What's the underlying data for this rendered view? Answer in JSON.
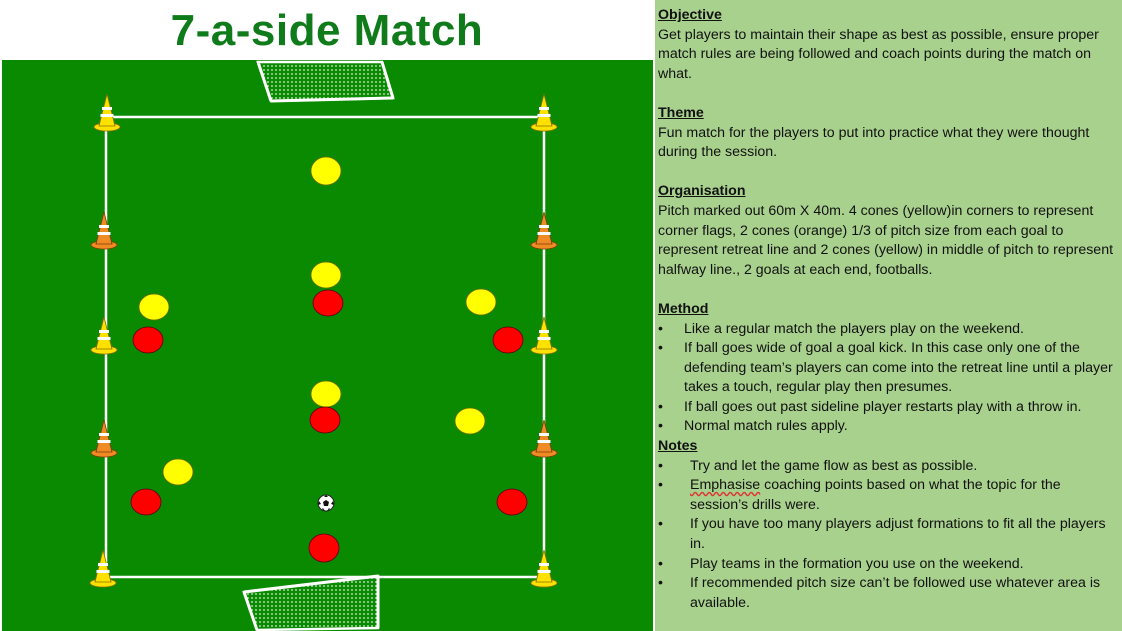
{
  "title": "7-a-side Match",
  "panel": {
    "objective": {
      "heading": "Objective",
      "text": "Get players to maintain their shape as best as possible, ensure proper match rules are being followed and coach points during the match on what."
    },
    "theme": {
      "heading": "Theme",
      "text": "Fun match for the players to put into practice what they were thought during the session."
    },
    "organisation": {
      "heading": "Organisation",
      "text": "Pitch marked out 60m X 40m. 4 cones (yellow)in corners to represent corner flags, 2 cones (orange) 1/3 of pitch size from each goal to represent retreat line and 2 cones (yellow) in middle of pitch to represent halfway line., 2 goals at each end, footballs."
    },
    "method": {
      "heading": "Method",
      "bullet": "•",
      "items": [
        "Like a regular match the players play on the weekend.",
        "If ball goes wide of goal a goal kick. In this case only one of the defending team’s players can come into the retreat line until a player takes a touch, regular play then presumes.",
        "If ball goes out past sideline player restarts play with a throw in.",
        "Normal match rules apply."
      ]
    },
    "notes": {
      "heading": "Notes",
      "bullet": "•",
      "items": [
        "Try and let the game flow as best as possible.",
        "coaching points based on what the topic for the session’s drills were.",
        "If you have too many players adjust formations to fit all the players in.",
        "Play teams in the formation you use on the weekend.",
        "If recommended pitch size can’t be followed use whatever area is available."
      ],
      "emphasise_word": "Emphasise"
    }
  },
  "colors": {
    "title": "#0f7b1a",
    "pitch": "#0a8a00",
    "panel": "#a9d18e",
    "team_yellow": "#ffff00",
    "team_red": "#ff0000",
    "cone_yellow": "#ffe100",
    "cone_orange": "#f08a24"
  },
  "icons": {
    "corner_cone": "cone-yellow-icon",
    "retreat_cone": "cone-orange-icon",
    "halfway_cone": "cone-yellow-icon",
    "ball": "football-icon",
    "goal": "goal-icon"
  }
}
